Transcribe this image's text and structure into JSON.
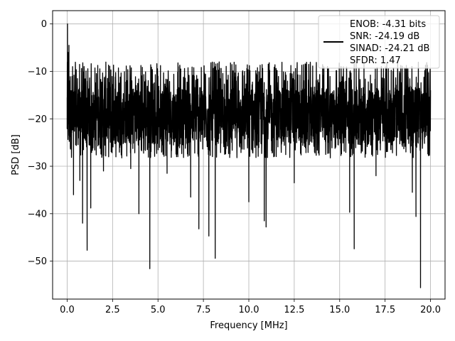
{
  "chart_data": {
    "type": "line",
    "xlabel": "Frequency [MHz]",
    "ylabel": "PSD [dB]",
    "xlim": [
      -0.8,
      20.8
    ],
    "ylim": [
      -58,
      2.8
    ],
    "xticks": [
      0.0,
      2.5,
      5.0,
      7.5,
      10.0,
      12.5,
      15.0,
      17.5,
      20.0
    ],
    "xtick_labels": [
      "0.0",
      "2.5",
      "5.0",
      "7.5",
      "10.0",
      "12.5",
      "15.0",
      "17.5",
      "20.0"
    ],
    "yticks": [
      0,
      -10,
      -20,
      -30,
      -40,
      -50
    ],
    "ytick_labels": [
      "0",
      "−10",
      "−20",
      "−30",
      "−40",
      "−50"
    ],
    "grid": true,
    "legend_position": "top-right",
    "legend_entries": [
      "ENOB: -4.31 bits",
      "SNR: -24.19 dB",
      "SINAD: -24.21 dB",
      "SFDR: 1.47"
    ],
    "series": [
      {
        "color": "#000000",
        "noise_floor_range_db": [
          -35,
          -8
        ],
        "points": [
          [
            0.0,
            -15.5
          ],
          [
            0.02,
            0.0
          ],
          [
            0.05,
            -6.0
          ],
          [
            0.1,
            -4.5
          ],
          [
            0.15,
            -12.0
          ],
          [
            0.2,
            -22.5
          ],
          [
            0.3,
            -9.0
          ],
          [
            0.35,
            -36.0
          ],
          [
            0.5,
            -10.5
          ],
          [
            0.7,
            -33.0
          ],
          [
            0.85,
            -42.0
          ],
          [
            1.1,
            -47.7
          ],
          [
            1.3,
            -38.8
          ],
          [
            2.0,
            -31.0
          ],
          [
            3.5,
            -30.5
          ],
          [
            3.95,
            -40.0
          ],
          [
            4.55,
            -51.6
          ],
          [
            5.5,
            -31.5
          ],
          [
            6.8,
            -36.5
          ],
          [
            7.25,
            -43.2
          ],
          [
            7.8,
            -44.7
          ],
          [
            8.15,
            -49.4
          ],
          [
            10.0,
            -37.5
          ],
          [
            10.85,
            -41.5
          ],
          [
            10.95,
            -42.8
          ],
          [
            12.5,
            -33.5
          ],
          [
            15.55,
            -39.7
          ],
          [
            15.8,
            -47.4
          ],
          [
            17.0,
            -32.0
          ],
          [
            19.0,
            -35.5
          ],
          [
            19.2,
            -40.6
          ],
          [
            19.45,
            -55.6
          ],
          [
            20.0,
            -15.0
          ]
        ]
      }
    ]
  }
}
